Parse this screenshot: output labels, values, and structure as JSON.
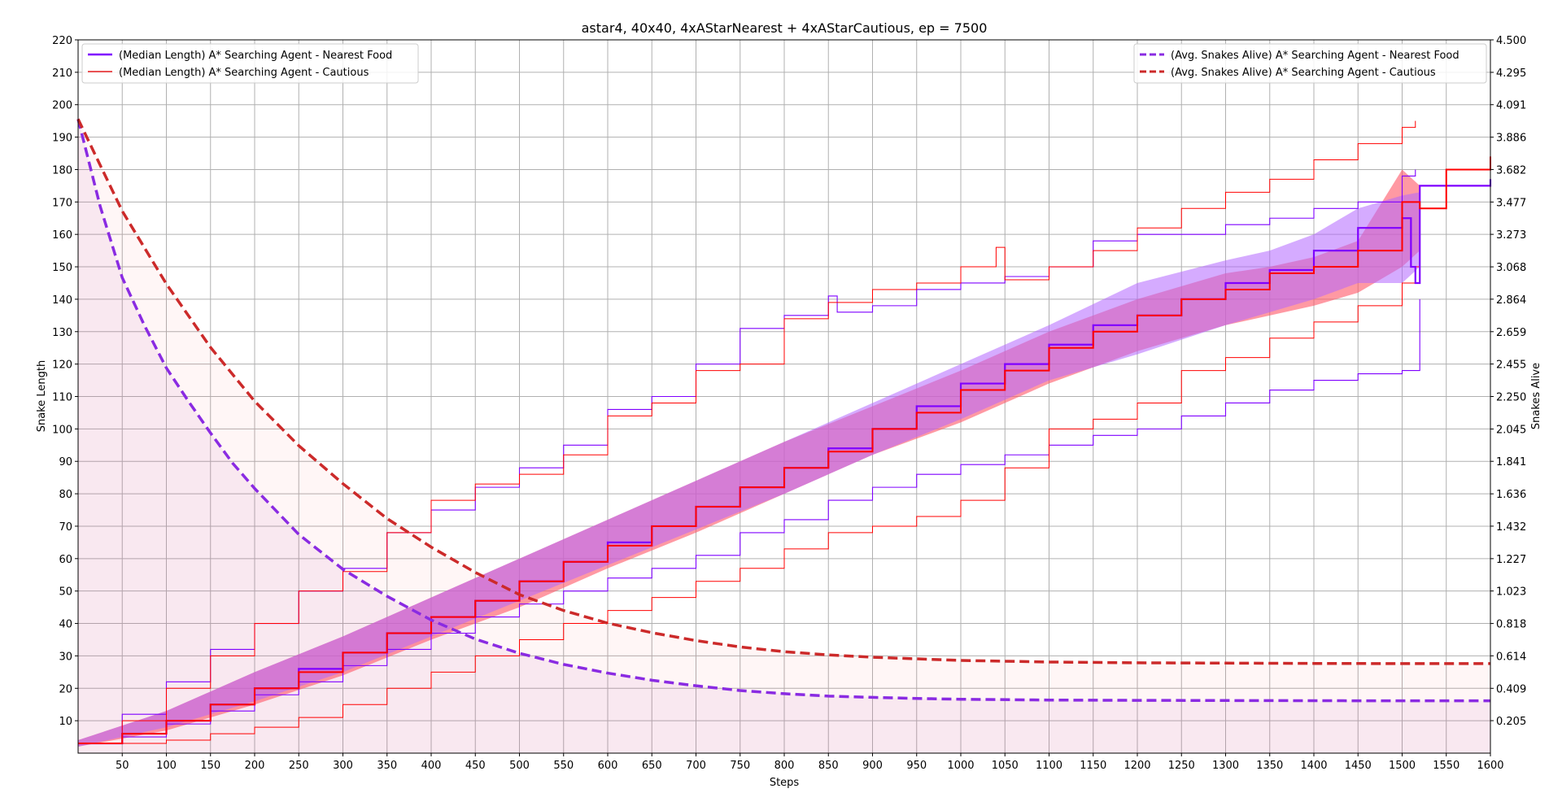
{
  "chart_data": {
    "type": "line",
    "title": "astar4, 40x40, 4xAStarNearest + 4xAStarCautious, ep = 7500",
    "xlabel": "Steps",
    "ylabel": "Snake Length",
    "y2label": "Snakes Alive",
    "xlim": [
      0,
      1600
    ],
    "ylim": [
      0,
      220
    ],
    "y2lim": [
      0,
      4.5
    ],
    "grid": true,
    "x_ticks": [
      50,
      100,
      150,
      200,
      250,
      300,
      350,
      400,
      450,
      500,
      550,
      600,
      650,
      700,
      750,
      800,
      850,
      900,
      950,
      1000,
      1050,
      1100,
      1150,
      1200,
      1250,
      1300,
      1350,
      1400,
      1450,
      1500,
      1550,
      1600
    ],
    "y_ticks": [
      10,
      20,
      30,
      40,
      50,
      60,
      70,
      80,
      90,
      100,
      110,
      120,
      130,
      140,
      150,
      160,
      170,
      180,
      190,
      200,
      210,
      220
    ],
    "y2_ticks": [
      "0.205",
      "0.409",
      "0.614",
      "0.818",
      "1.023",
      "1.227",
      "1.432",
      "1.636",
      "1.841",
      "2.045",
      "2.250",
      "2.455",
      "2.659",
      "2.864",
      "3.068",
      "3.273",
      "3.477",
      "3.682",
      "3.886",
      "4.091",
      "4.295",
      "4.500"
    ],
    "legend_left": {
      "placement": "upper-left",
      "entries": [
        {
          "label": "(Median Length) A* Searching Agent - Nearest Food",
          "color": "#7f00ff"
        },
        {
          "label": "(Median Length) A* Searching Agent - Cautious",
          "color": "#e41a1c"
        }
      ]
    },
    "legend_right": {
      "placement": "upper-right",
      "entries": [
        {
          "label": "(Avg. Snakes Alive) A* Searching Agent - Nearest Food",
          "color": "#8a2be2"
        },
        {
          "label": "(Avg. Snakes Alive) A* Searching Agent - Cautious",
          "color": "#cc2a2a"
        }
      ]
    },
    "colors": {
      "nearest": "#7f00ff",
      "cautious": "#ff0000",
      "nearest_band": "#b266ff",
      "cautious_band": "#ff5566",
      "alive_nearest": "#8a2be2",
      "alive_cautious": "#cc2a2a"
    },
    "series": [
      {
        "key": "median_nearest",
        "axis": "left",
        "x": [
          0,
          50,
          100,
          150,
          200,
          250,
          300,
          350,
          400,
          450,
          500,
          550,
          600,
          650,
          700,
          750,
          800,
          850,
          900,
          950,
          1000,
          1050,
          1100,
          1150,
          1200,
          1250,
          1300,
          1350,
          1400,
          1450,
          1500,
          1510,
          1515,
          1520,
          1550,
          1600
        ],
        "y": [
          3,
          6,
          10,
          15,
          20,
          26,
          31,
          37,
          42,
          47,
          53,
          59,
          65,
          70,
          76,
          82,
          88,
          94,
          100,
          107,
          114,
          120,
          126,
          132,
          135,
          140,
          145,
          149,
          155,
          162,
          165,
          150,
          145,
          175,
          175,
          177
        ]
      },
      {
        "key": "median_cautious",
        "axis": "left",
        "x": [
          0,
          50,
          100,
          150,
          200,
          250,
          300,
          350,
          400,
          450,
          500,
          550,
          600,
          650,
          700,
          750,
          800,
          850,
          900,
          950,
          1000,
          1050,
          1100,
          1150,
          1200,
          1250,
          1300,
          1350,
          1400,
          1450,
          1500,
          1520,
          1550,
          1600
        ],
        "y": [
          3,
          6,
          10,
          15,
          20,
          25,
          31,
          37,
          42,
          47,
          53,
          59,
          64,
          70,
          76,
          82,
          88,
          93,
          100,
          105,
          112,
          118,
          125,
          130,
          135,
          140,
          143,
          148,
          150,
          155,
          170,
          168,
          180,
          184
        ]
      },
      {
        "key": "max_nearest",
        "axis": "left",
        "x": [
          0,
          50,
          100,
          150,
          200,
          250,
          300,
          350,
          400,
          450,
          500,
          550,
          600,
          650,
          700,
          750,
          800,
          850,
          860,
          900,
          950,
          1000,
          1050,
          1100,
          1150,
          1200,
          1250,
          1300,
          1350,
          1400,
          1450,
          1500,
          1515
        ],
        "y": [
          3,
          12,
          22,
          32,
          40,
          50,
          57,
          68,
          75,
          82,
          88,
          95,
          106,
          110,
          120,
          131,
          135,
          141,
          136,
          138,
          143,
          145,
          147,
          150,
          158,
          160,
          160,
          163,
          165,
          168,
          170,
          178,
          180
        ]
      },
      {
        "key": "max_cautious",
        "axis": "left",
        "x": [
          0,
          50,
          100,
          150,
          200,
          250,
          300,
          350,
          400,
          450,
          500,
          550,
          600,
          650,
          700,
          750,
          800,
          850,
          900,
          950,
          1000,
          1040,
          1050,
          1100,
          1150,
          1200,
          1250,
          1300,
          1350,
          1400,
          1450,
          1500,
          1515
        ],
        "y": [
          3,
          10,
          20,
          30,
          40,
          50,
          56,
          68,
          78,
          83,
          86,
          92,
          104,
          108,
          118,
          120,
          134,
          139,
          143,
          145,
          150,
          156,
          146,
          150,
          155,
          162,
          168,
          173,
          177,
          183,
          188,
          193,
          195
        ]
      },
      {
        "key": "min_nearest",
        "axis": "left",
        "x": [
          0,
          50,
          100,
          150,
          200,
          250,
          300,
          350,
          400,
          450,
          500,
          550,
          600,
          650,
          700,
          750,
          800,
          850,
          900,
          950,
          1000,
          1050,
          1100,
          1150,
          1200,
          1250,
          1300,
          1350,
          1400,
          1450,
          1500,
          1515,
          1520
        ],
        "y": [
          3,
          5,
          9,
          13,
          18,
          22,
          27,
          32,
          37,
          42,
          46,
          50,
          54,
          57,
          61,
          68,
          72,
          78,
          82,
          86,
          89,
          92,
          95,
          98,
          100,
          104,
          108,
          112,
          115,
          117,
          118,
          118,
          140
        ]
      },
      {
        "key": "min_cautious",
        "axis": "left",
        "x": [
          0,
          50,
          100,
          150,
          200,
          250,
          300,
          350,
          400,
          450,
          500,
          550,
          600,
          650,
          700,
          750,
          800,
          850,
          900,
          950,
          1000,
          1050,
          1100,
          1150,
          1200,
          1250,
          1300,
          1350,
          1400,
          1450,
          1500,
          1515,
          1520
        ],
        "y": [
          3,
          3,
          4,
          6,
          8,
          11,
          15,
          20,
          25,
          30,
          35,
          40,
          44,
          48,
          53,
          57,
          63,
          68,
          70,
          73,
          78,
          88,
          100,
          103,
          108,
          118,
          122,
          128,
          133,
          138,
          145,
          150,
          160
        ]
      },
      {
        "key": "alive_nearest",
        "axis": "right",
        "x": [
          0,
          25,
          50,
          75,
          100,
          125,
          150,
          175,
          200,
          250,
          300,
          350,
          400,
          450,
          500,
          550,
          600,
          650,
          700,
          750,
          800,
          850,
          900,
          950,
          1000,
          1100,
          1200,
          1300,
          1400,
          1500,
          1600
        ],
        "y": [
          4.0,
          3.45,
          3.0,
          2.7,
          2.43,
          2.22,
          2.02,
          1.83,
          1.67,
          1.38,
          1.16,
          0.99,
          0.84,
          0.72,
          0.63,
          0.56,
          0.505,
          0.46,
          0.425,
          0.395,
          0.375,
          0.36,
          0.352,
          0.345,
          0.34,
          0.335,
          0.333,
          0.332,
          0.331,
          0.33,
          0.33
        ]
      },
      {
        "key": "alive_cautious",
        "axis": "right",
        "x": [
          0,
          50,
          100,
          150,
          200,
          250,
          300,
          350,
          400,
          450,
          500,
          550,
          600,
          650,
          700,
          750,
          800,
          850,
          900,
          950,
          1000,
          1100,
          1200,
          1300,
          1400,
          1500,
          1600
        ],
        "y": [
          4.0,
          3.42,
          2.96,
          2.56,
          2.22,
          1.94,
          1.7,
          1.48,
          1.3,
          1.14,
          1.0,
          0.9,
          0.82,
          0.76,
          0.71,
          0.67,
          0.64,
          0.62,
          0.605,
          0.595,
          0.585,
          0.575,
          0.57,
          0.568,
          0.566,
          0.565,
          0.565
        ]
      }
    ],
    "bands": [
      {
        "key": "band_cautious",
        "x": [
          0,
          100,
          200,
          300,
          400,
          500,
          600,
          700,
          800,
          900,
          1000,
          1100,
          1200,
          1300,
          1350,
          1400,
          1450,
          1500,
          1520
        ],
        "lower": [
          2,
          7,
          15,
          24,
          35,
          45,
          57,
          68,
          80,
          92,
          102,
          114,
          124,
          132,
          135,
          138,
          142,
          150,
          155
        ],
        "upper": [
          4,
          13,
          25,
          36,
          48,
          60,
          72,
          84,
          96,
          107,
          118,
          130,
          140,
          148,
          150,
          153,
          158,
          180,
          175
        ]
      },
      {
        "key": "band_nearest",
        "x": [
          0,
          100,
          200,
          300,
          400,
          500,
          600,
          700,
          800,
          900,
          1000,
          1100,
          1200,
          1300,
          1350,
          1400,
          1450,
          1500,
          1520
        ],
        "lower": [
          2,
          8,
          16,
          25,
          36,
          47,
          58,
          69,
          80,
          92,
          103,
          115,
          123,
          132,
          136,
          140,
          145,
          145,
          150
        ],
        "upper": [
          4,
          13,
          25,
          36,
          48,
          60,
          72,
          84,
          96,
          108,
          120,
          132,
          145,
          152,
          155,
          160,
          168,
          172,
          173
        ]
      }
    ]
  }
}
